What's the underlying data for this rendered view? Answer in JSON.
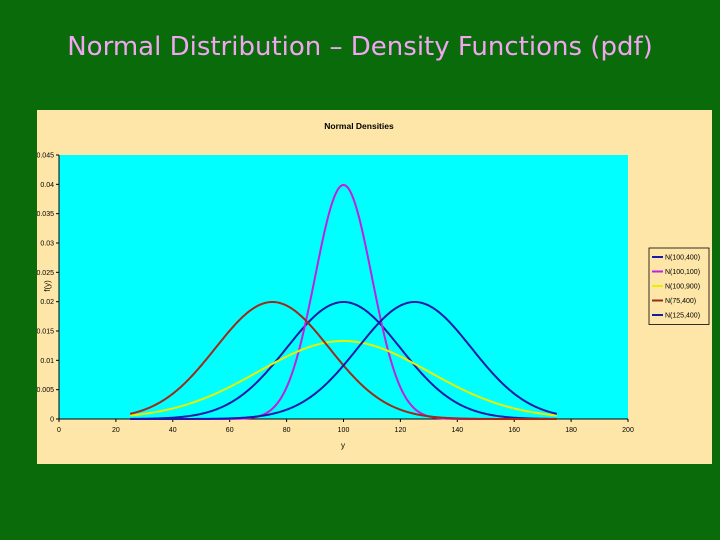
{
  "slide": {
    "title": "Normal Distribution – Density Functions (pdf)"
  },
  "colors": {
    "background": "#0a6b0a",
    "panel": "#fde6a8",
    "plot": "#00ffff",
    "title": "#f2a6f2"
  },
  "chart_data": {
    "type": "line",
    "title": "Normal Densities",
    "xlabel": "y",
    "ylabel": "f(y)",
    "xlim": [
      0,
      200
    ],
    "ylim": [
      0,
      0.045
    ],
    "xticks": [
      0,
      20,
      40,
      60,
      80,
      100,
      120,
      140,
      160,
      180,
      200
    ],
    "yticks": [
      "0",
      "0.005",
      "0.01",
      "0.015",
      "0.02",
      "0.025",
      "0.03",
      "0.035",
      "0.04",
      "0.045"
    ],
    "x_domain": [
      25,
      175
    ],
    "grid": false,
    "legend_position": "right",
    "series": [
      {
        "name": "N(100,400)",
        "mean": 100,
        "variance": 400,
        "color": "#1a1aa8"
      },
      {
        "name": "N(100,100)",
        "mean": 100,
        "variance": 100,
        "color": "#c020e0"
      },
      {
        "name": "N(100,900)",
        "mean": 100,
        "variance": 900,
        "color": "#e8f000"
      },
      {
        "name": "N(75,400)",
        "mean": 75,
        "variance": 400,
        "color": "#a02a1a"
      },
      {
        "name": "N(125,400)",
        "mean": 125,
        "variance": 400,
        "color": "#1a1aa8"
      }
    ]
  }
}
